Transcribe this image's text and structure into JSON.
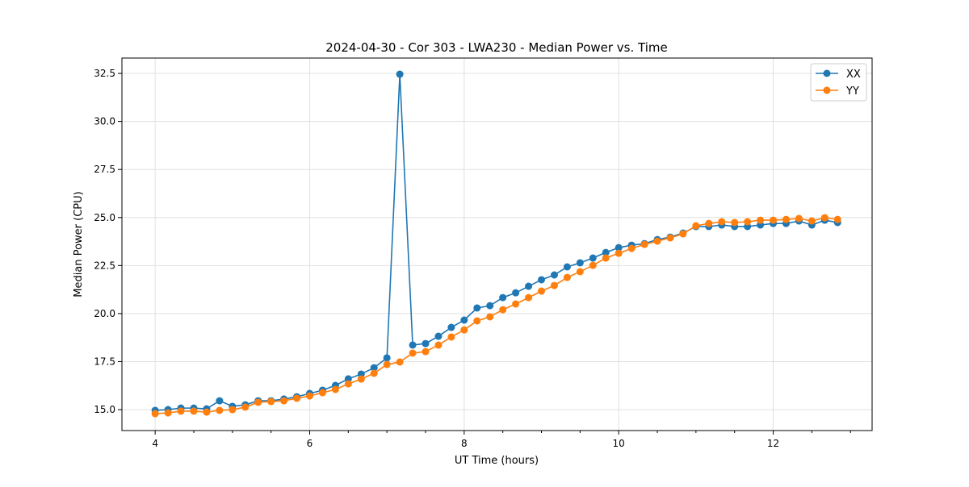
{
  "chart_data": {
    "type": "line",
    "title": "2024-04-30 - Cor 303 - LWA230 - Median Power vs. Time",
    "xlabel": "UT Time (hours)",
    "ylabel": "Median Power (CPU)",
    "xlim": [
      3.57,
      13.28
    ],
    "ylim": [
      13.91,
      33.3
    ],
    "xticks": [
      4,
      6,
      8,
      10,
      12
    ],
    "xtick_labels": [
      "4",
      "6",
      "8",
      "10",
      "12"
    ],
    "yticks": [
      15.0,
      17.5,
      20.0,
      22.5,
      25.0,
      27.5,
      30.0,
      32.5
    ],
    "ytick_labels": [
      "15.0",
      "17.5",
      "20.0",
      "22.5",
      "25.0",
      "27.5",
      "30.0",
      "32.5"
    ],
    "grid": true,
    "legend_position": "top-right",
    "x_start": 4.0,
    "x_step": 0.16667,
    "series": [
      {
        "name": "XX",
        "color": "#1f77b4",
        "values": [
          14.96,
          15.0,
          15.08,
          15.08,
          15.04,
          15.46,
          15.17,
          15.25,
          15.46,
          15.46,
          15.55,
          15.67,
          15.84,
          16.01,
          16.26,
          16.6,
          16.85,
          17.18,
          17.69,
          32.46,
          18.36,
          18.44,
          18.82,
          19.28,
          19.66,
          20.29,
          20.41,
          20.83,
          21.08,
          21.42,
          21.76,
          22.01,
          22.43,
          22.64,
          22.89,
          23.18,
          23.43,
          23.56,
          23.64,
          23.85,
          23.98,
          24.19,
          24.53,
          24.53,
          24.61,
          24.53,
          24.53,
          24.61,
          24.69,
          24.69,
          24.82,
          24.61,
          24.86,
          24.74
        ]
      },
      {
        "name": "YY",
        "color": "#ff7f0e",
        "values": [
          14.79,
          14.83,
          14.92,
          14.92,
          14.87,
          14.96,
          15.0,
          15.13,
          15.38,
          15.42,
          15.46,
          15.59,
          15.71,
          15.88,
          16.05,
          16.34,
          16.59,
          16.89,
          17.35,
          17.48,
          17.94,
          18.02,
          18.36,
          18.78,
          19.15,
          19.62,
          19.83,
          20.2,
          20.5,
          20.83,
          21.17,
          21.46,
          21.88,
          22.18,
          22.51,
          22.89,
          23.14,
          23.39,
          23.6,
          23.77,
          23.94,
          24.15,
          24.57,
          24.69,
          24.78,
          24.74,
          24.78,
          24.86,
          24.86,
          24.9,
          24.95,
          24.82,
          24.99,
          24.9
        ]
      }
    ]
  }
}
